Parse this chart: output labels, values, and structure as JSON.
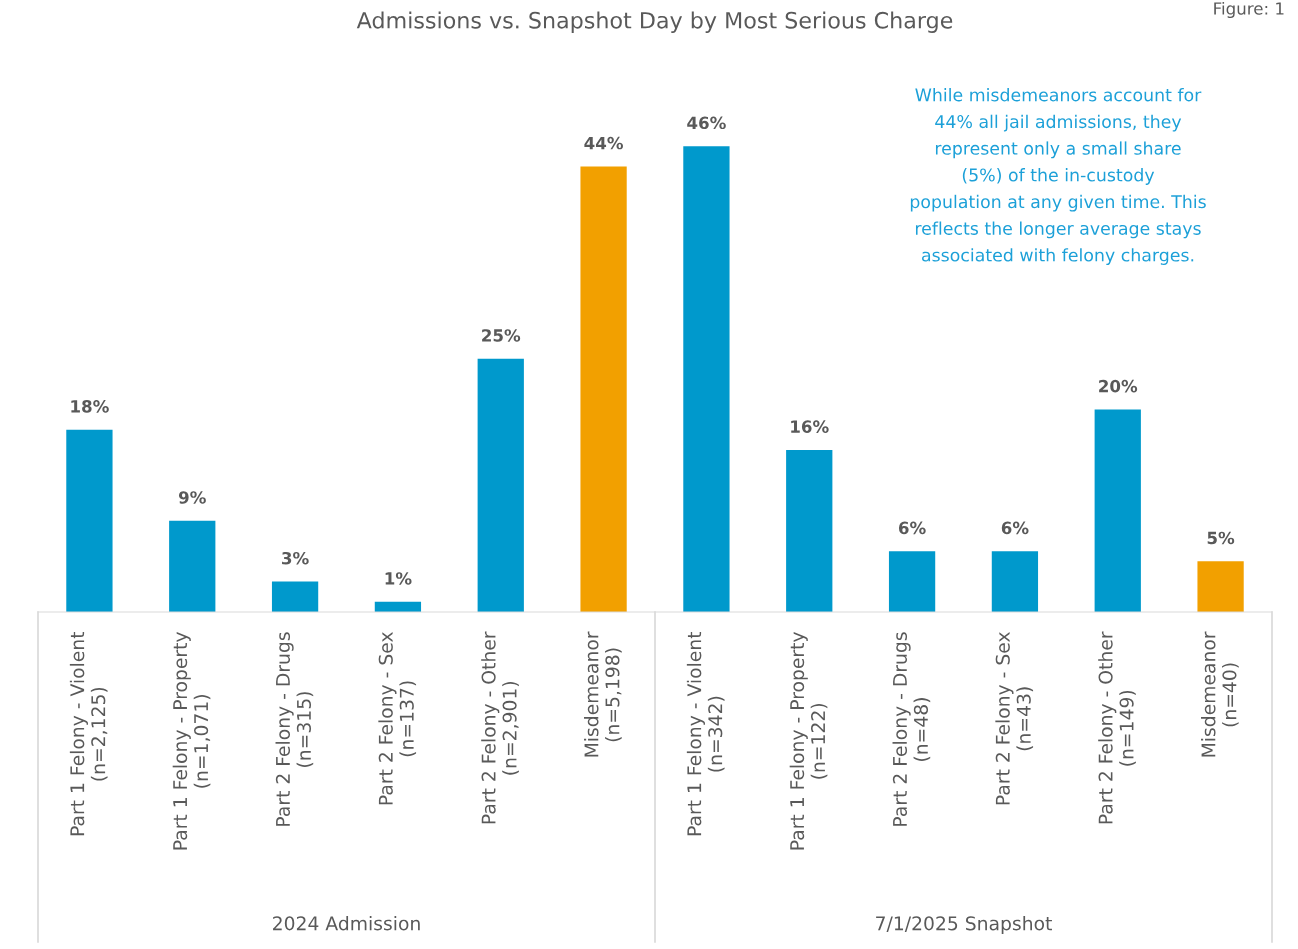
{
  "chart_data": {
    "type": "bar",
    "title": "Admissions vs. Snapshot Day by Most Serious Charge",
    "categories": [
      "Part 1 Felony - Violent\n(n=2,125)",
      "Part 1 Felony - Property\n(n=1,071)",
      "Part 2 Felony - Drugs\n(n=315)",
      "Part 2 Felony - Sex\n(n=137)",
      "Part 2 Felony - Other\n(n=2,901)",
      "Misdemeanor\n(n=5,198)",
      "Part 1 Felony - Violent\n(n=342)",
      "Part 1 Felony - Property\n(n=122)",
      "Part 2 Felony - Drugs\n(n=48)",
      "Part 2 Felony - Sex\n(n=43)",
      "Part 2 Felony - Other\n(n=149)",
      "Misdemeanor\n(n=40)"
    ],
    "values": [
      18,
      9,
      3,
      1,
      25,
      44,
      46,
      16,
      6,
      6,
      20,
      5
    ],
    "value_labels": [
      "18%",
      "9%",
      "3%",
      "1%",
      "25%",
      "44%",
      "46%",
      "16%",
      "6%",
      "6%",
      "20%",
      "5%"
    ],
    "colors": [
      "#0099cc",
      "#0099cc",
      "#0099cc",
      "#0099cc",
      "#0099cc",
      "#f2a000",
      "#0099cc",
      "#0099cc",
      "#0099cc",
      "#0099cc",
      "#0099cc",
      "#f2a000"
    ],
    "annotations": [
      "While misdemeanors account for\n44% all jail admissions, they\nrepresent only a small share\n(5%) of the in-custody\npopulation at any given time. This\nreflects the longer average stays\nassociated with felony charges.",
      "2024 Admission",
      "7/1/2025 Snapshot",
      "Figure: 1"
    ],
    "grid": false,
    "legend": false
  }
}
